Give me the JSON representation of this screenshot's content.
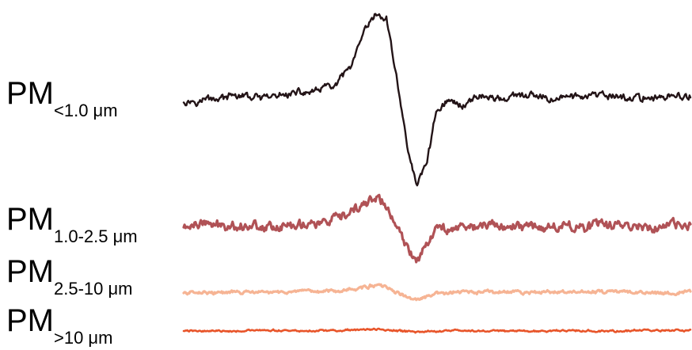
{
  "chart_data": {
    "type": "line",
    "title": "",
    "xlabel": "",
    "ylabel": "",
    "axes_visible": false,
    "grid": false,
    "legend": "none",
    "x": [
      0,
      0.05,
      0.1,
      0.15,
      0.2,
      0.25,
      0.3,
      0.33,
      0.36,
      0.38,
      0.4,
      0.42,
      0.44,
      0.46,
      0.48,
      0.5,
      0.52,
      0.55,
      0.58,
      0.6,
      0.62,
      0.65,
      0.68,
      0.72,
      0.76,
      0.8,
      0.85,
      0.9,
      0.95,
      1.0
    ],
    "series": [
      {
        "label_main": "PM",
        "label_sub": "<1.0 μm",
        "color": "#231417",
        "noise": 0.06,
        "values": [
          0,
          0.03,
          0.05,
          0.03,
          0.06,
          0.1,
          0.18,
          0.4,
          0.85,
          1.0,
          0.95,
          0.3,
          -0.5,
          -1.0,
          -0.7,
          -0.1,
          0.0,
          -0.05,
          0.05,
          0.05,
          0.03,
          0.04,
          0.05,
          0.03,
          0.05,
          0.04,
          0.05,
          0.03,
          0.05,
          0.04
        ]
      },
      {
        "label_main": "PM",
        "label_sub": "1.0-2.5 μm",
        "color": "#b05256",
        "noise": 0.16,
        "values": [
          0,
          0.05,
          0.02,
          0.05,
          0.04,
          0.08,
          0.15,
          0.3,
          0.55,
          0.7,
          0.45,
          0.0,
          -0.45,
          -0.75,
          -0.3,
          -0.05,
          0.0,
          0.02,
          0.04,
          0.02,
          0.04,
          0.05,
          0.03,
          0.04,
          0.05,
          0.03,
          0.05,
          0.04,
          0.02,
          0.03
        ]
      },
      {
        "label_main": "PM",
        "label_sub": "2.5-10 μm",
        "color": "#f6b494",
        "noise": 0.12,
        "values": [
          0,
          0.02,
          0.03,
          0.02,
          0.04,
          0.05,
          0.1,
          0.18,
          0.3,
          0.4,
          0.25,
          0.05,
          -0.2,
          -0.35,
          -0.2,
          -0.05,
          0.0,
          0.02,
          0.03,
          0.05,
          0.03,
          0.04,
          0.03,
          0.05,
          0.04,
          0.03,
          0.05,
          0.04,
          0.03,
          0.04
        ]
      },
      {
        "label_main": "PM",
        "label_sub": ">10 μm",
        "color": "#e8552a",
        "noise": 0.1,
        "values": [
          0,
          0.02,
          0.01,
          0.02,
          0.03,
          0.02,
          0.04,
          0.06,
          0.08,
          0.1,
          0.07,
          0.02,
          -0.04,
          -0.06,
          -0.03,
          0.0,
          0.01,
          0.02,
          0.01,
          0.02,
          0.03,
          0.02,
          0.01,
          0.02,
          0.03,
          0.02,
          0.01,
          0.02,
          0.03,
          0.02
        ]
      }
    ]
  }
}
